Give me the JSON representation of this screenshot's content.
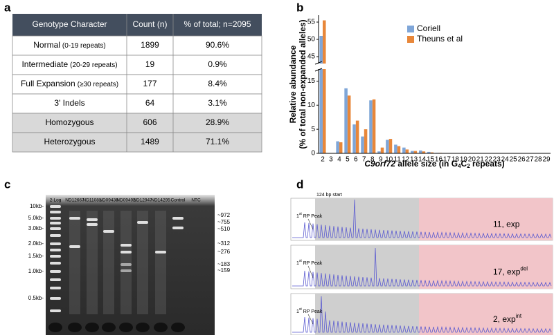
{
  "letters": [
    "a",
    "b",
    "c",
    "d"
  ],
  "table_panel": {
    "header": [
      "Genotype Character",
      "Count (n)",
      "% of total; n=2095"
    ],
    "rows": [
      {
        "label": "Normal",
        "note": "(0-19 repeats)",
        "count": 1899,
        "percent": "90.6%",
        "shaded": false
      },
      {
        "label": "Intermediate",
        "note": "(20-29 repeats)",
        "count": 19,
        "percent": "0.9%",
        "shaded": false
      },
      {
        "label": "Full Expansion",
        "note": "(≥30 repeats)",
        "count": 177,
        "percent": "8.4%",
        "shaded": false
      },
      {
        "label": "3' Indels",
        "count": 64,
        "percent": "3.1%",
        "shaded": false
      },
      {
        "label": "Homozygous",
        "count": 606,
        "percent": "28.9%",
        "shaded": true
      },
      {
        "label": "Heterozygous",
        "count": 1489,
        "percent": "71.1%",
        "shaded": true
      }
    ]
  },
  "chart_data": {
    "type": "bar",
    "ylabel": [
      "Relative abundance",
      "(% of total non-expanded alleles)"
    ],
    "xlabel": [
      "C9orf72",
      " allele size (in G",
      "4",
      "C",
      "2",
      " repeats)"
    ],
    "categories": [
      "2",
      "3",
      "4",
      "5",
      "6",
      "7",
      "8",
      "9",
      "10",
      "11",
      "12",
      "13",
      "14",
      "15",
      "16",
      "17",
      "18",
      "19",
      "20",
      "21",
      "22",
      "23",
      "24",
      "25",
      "26",
      "27",
      "28",
      "29"
    ],
    "series": [
      {
        "name": "Coriell",
        "color": "#7fa6d8",
        "values": [
          51,
          0,
          2.5,
          13.5,
          6,
          3.5,
          11,
          0.4,
          2.8,
          1.8,
          1.2,
          0.5,
          0.6,
          0.3,
          0.1,
          0.05,
          0.05,
          0.05,
          0.05,
          0.05,
          0.05,
          0.05,
          0.05,
          0.05,
          0.05,
          0.05,
          0.05,
          0.05
        ]
      },
      {
        "name": "Theuns et al",
        "color": "#e8873a",
        "values": [
          55.5,
          0,
          2.3,
          12,
          6.8,
          5,
          11.2,
          1.2,
          3,
          1.5,
          0.8,
          0.5,
          0.4,
          0.2,
          0.1,
          0.05,
          0.05,
          0.05,
          0.05,
          0.05,
          0.05,
          0.05,
          0.05,
          0.05,
          0.05,
          0.05,
          0.05,
          0.05
        ]
      }
    ],
    "ylim": [
      0,
      57
    ],
    "ybreak": [
      17.5,
      43
    ],
    "yticks": [
      0,
      5,
      10,
      15,
      45,
      50,
      55
    ],
    "legend": "top-right"
  },
  "gel_panel": {
    "lane_labels": [
      "2-Log",
      "ND12667",
      "ND11081",
      "ND09438",
      "ND09492",
      "ND12947",
      "ND14295",
      "Control",
      "NTC"
    ],
    "ladder_labels": [
      "10kb-",
      "5.0kb-",
      "3.0kb-",
      "2.0kb-",
      "1.5kb-",
      "1.0kb-",
      "0.5kb-"
    ],
    "size_labels": [
      "~972",
      "~755",
      "~510",
      "~312",
      "~276",
      "~183",
      "~159"
    ]
  },
  "trace_panel": {
    "start_label": "124 bp start",
    "traces": [
      {
        "peak_label": [
          "1",
          "st",
          " RP Peak"
        ],
        "sample": [
          "11, exp"
        ]
      },
      {
        "peak_label": [
          "1",
          "st",
          " RP Peak"
        ],
        "sample": [
          "17, exp",
          "del"
        ]
      },
      {
        "peak_label": [
          "1",
          "st",
          " RP Peak"
        ],
        "sample": [
          "2, exp",
          "int"
        ]
      }
    ]
  }
}
